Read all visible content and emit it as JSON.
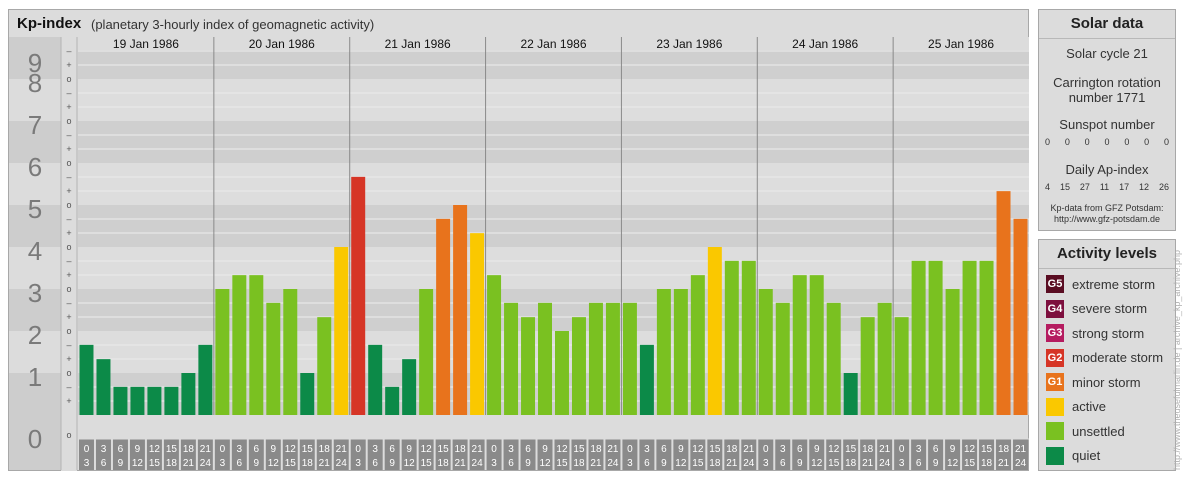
{
  "header": {
    "title": "Kp-index",
    "subtitle": "(planetary 3-hourly index of geomagnetic activity)"
  },
  "chart_data": {
    "type": "bar",
    "title": "Kp-index",
    "subtitle": "(planetary 3-hourly index of geomagnetic activity)",
    "ylim": [
      0,
      9
    ],
    "y_tick_labels": [
      "0",
      "1",
      "2",
      "3",
      "4",
      "5",
      "6",
      "7",
      "8",
      "9"
    ],
    "y_minor_labels": [
      "o",
      "+",
      "–",
      "o"
    ],
    "interval_top_labels": [
      "0",
      "3",
      "6",
      "9",
      "12",
      "15",
      "18",
      "21"
    ],
    "interval_bottom_labels": [
      "3",
      "6",
      "9",
      "12",
      "15",
      "18",
      "21",
      "24"
    ],
    "days": [
      {
        "label": "19 Jan 1986",
        "kp": [
          1.67,
          1.33,
          0.67,
          0.67,
          0.67,
          0.67,
          1.0,
          1.67
        ]
      },
      {
        "label": "20 Jan 1986",
        "kp": [
          3.0,
          3.33,
          3.33,
          2.67,
          3.0,
          1.0,
          2.33,
          4.0
        ]
      },
      {
        "label": "21 Jan 1986",
        "kp": [
          5.67,
          1.67,
          0.67,
          1.33,
          3.0,
          4.67,
          5.0,
          4.33
        ]
      },
      {
        "label": "22 Jan 1986",
        "kp": [
          3.33,
          2.67,
          2.33,
          2.67,
          2.0,
          2.33,
          2.67,
          2.67
        ]
      },
      {
        "label": "23 Jan 1986",
        "kp": [
          2.67,
          1.67,
          3.0,
          3.0,
          3.33,
          4.0,
          3.67,
          3.67
        ]
      },
      {
        "label": "24 Jan 1986",
        "kp": [
          3.0,
          2.67,
          3.33,
          3.33,
          2.67,
          1.0,
          2.33,
          2.67
        ]
      },
      {
        "label": "25 Jan 1986",
        "kp": [
          2.33,
          3.67,
          3.67,
          3.0,
          3.67,
          3.67,
          5.33,
          4.67
        ]
      }
    ],
    "bar_colors": {
      "quiet": "#0c8a48",
      "unsettled": "#7ac121",
      "active": "#fac800",
      "minor_storm": "#e8731c",
      "moderate_storm": "#d63526"
    },
    "grid": true
  },
  "solar_data": {
    "heading": "Solar data",
    "solar_cycle": "Solar cycle 21",
    "carrington_line1": "Carrington rotation",
    "carrington_line2": "number 1771",
    "sunspot_title": "Sunspot number",
    "sunspot_values": [
      "0",
      "0",
      "0",
      "0",
      "0",
      "0",
      "0"
    ],
    "ap_title": "Daily Ap-index",
    "ap_values": [
      "4",
      "15",
      "27",
      "11",
      "17",
      "12",
      "26"
    ],
    "source_line1": "Kp-data from GFZ Potsdam:",
    "source_line2": "http://www.gfz-potsdam.de"
  },
  "activity_levels": {
    "heading": "Activity levels",
    "items": [
      {
        "code": "G5",
        "label": "extreme storm",
        "color": "#5a0d22"
      },
      {
        "code": "G4",
        "label": "severe storm",
        "color": "#7d0f3e"
      },
      {
        "code": "G3",
        "label": "strong storm",
        "color": "#b51c60"
      },
      {
        "code": "G2",
        "label": "moderate storm",
        "color": "#d63526"
      },
      {
        "code": "G1",
        "label": "minor storm",
        "color": "#e8731c"
      },
      {
        "code": "",
        "label": "active",
        "color": "#fac800"
      },
      {
        "code": "",
        "label": "unsettled",
        "color": "#7ac121"
      },
      {
        "code": "",
        "label": "quiet",
        "color": "#0c8a48"
      }
    ]
  },
  "watermark": "http://www.theusefulmarlin.de | archive_kp_archive.php"
}
